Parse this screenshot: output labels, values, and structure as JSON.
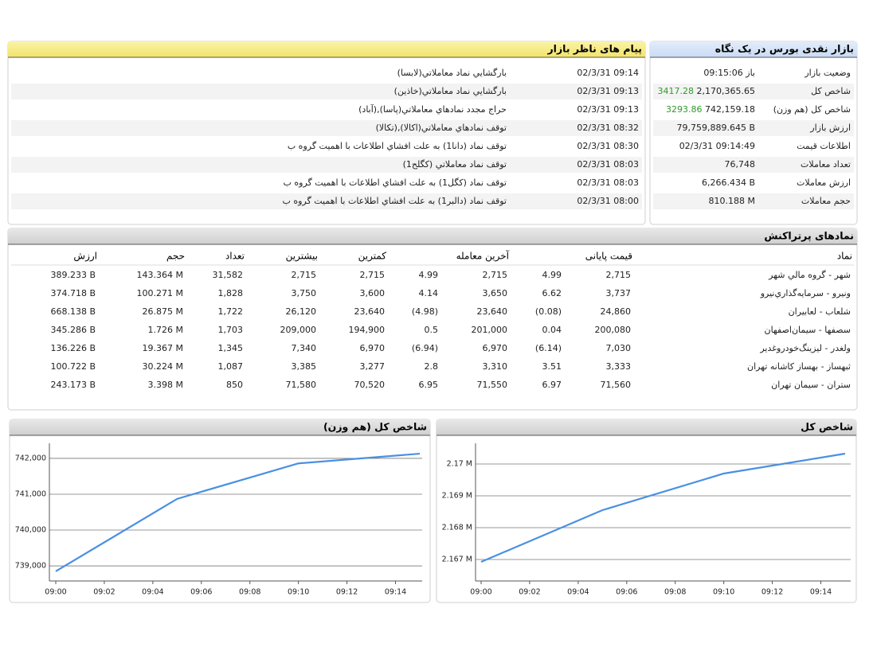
{
  "market_overview": {
    "title": "بازار نقدی بورس در یک نگاه",
    "rows": [
      {
        "label": "وضعیت بازار",
        "value": "باز 09:15:06"
      },
      {
        "label": "شاخص کل",
        "value": "2,170,365.65",
        "change": "3417.28"
      },
      {
        "label": "شاخص کل (هم وزن)",
        "value": "742,159.18",
        "change": "3293.86"
      },
      {
        "label": "ارزش بازار",
        "value": "79,759,889.645 B"
      },
      {
        "label": "اطلاعات قیمت",
        "value": "02/3/31 09:14:49"
      },
      {
        "label": "تعداد معاملات",
        "value": "76,748"
      },
      {
        "label": "ارزش معاملات",
        "value": "6,266.434 B"
      },
      {
        "label": "حجم معاملات",
        "value": "810.188 M"
      }
    ]
  },
  "watchdog_messages": {
    "title": "پیام های ناظر بازار",
    "rows": [
      {
        "time": "02/3/31 09:14",
        "text": "بارگشايي نماد معاملاتي(لابسا)"
      },
      {
        "time": "02/3/31 09:13",
        "text": "بارگشايي نماد معاملاتي(خاذين)"
      },
      {
        "time": "02/3/31 09:13",
        "text": "حراج مجدد نمادهاي معاملاتي(پاسا),(آباد)"
      },
      {
        "time": "02/3/31 08:32",
        "text": "توقف نمادهاي معاملاتي(اكالا),(تكالا)"
      },
      {
        "time": "02/3/31 08:30",
        "text": "توقف نماد (دانا1) به علت افشاي اطلاعات با اهميت گروه ب"
      },
      {
        "time": "02/3/31 08:03",
        "text": "توقف نماد معاملاتي (كگلح1)"
      },
      {
        "time": "02/3/31 08:03",
        "text": "توقف نماد (كگل1) به علت افشاي اطلاعات با اهميت گروه ب"
      },
      {
        "time": "02/3/31 08:00",
        "text": "توقف نماد (دالبر1) به علت افشاي اطلاعات با اهميت گروه ب"
      }
    ]
  },
  "top_symbols": {
    "title": "نمادهای پرتراکنش",
    "columns": [
      "نماد",
      "قیمت پایانی",
      "آخرین معامله",
      "کمترین",
      "بیشترین",
      "تعداد",
      "حجم",
      "ارزش"
    ],
    "rows": [
      [
        "شهر - گروه مالي شهر",
        "2,715",
        "4.99",
        "2,715",
        "4.99",
        "2,715",
        "2,715",
        "31,582",
        "143.364 M",
        "389.233 B"
      ],
      [
        "ونيرو - سرمايه‌گذاري‌نيرو",
        "3,737",
        "6.62",
        "3,650",
        "4.14",
        "3,600",
        "3,750",
        "1,828",
        "100.271 M",
        "374.718 B"
      ],
      [
        "شلعاب - لعابيران",
        "24,860",
        "(0.08)",
        "23,640",
        "(4.98)",
        "23,640",
        "26,120",
        "1,722",
        "26.875 M",
        "668.138 B"
      ],
      [
        "سصفها - سيمان‌اصفهان",
        "200,080",
        "0.04",
        "201,000",
        "0.5",
        "194,900",
        "209,000",
        "1,703",
        "1.726 M",
        "345.286 B"
      ],
      [
        "ولغدر - ليزينگ‌خودروغدير",
        "7,030",
        "(6.14)",
        "6,970",
        "(6.94)",
        "6,970",
        "7,340",
        "1,345",
        "19.367 M",
        "136.226 B"
      ],
      [
        "ثبهساز - بهساز كاشانه تهران",
        "3,333",
        "3.51",
        "3,310",
        "2.8",
        "3,277",
        "3,385",
        "1,087",
        "30.224 M",
        "100.722 B"
      ],
      [
        "ستران - سيمان تهران",
        "71,560",
        "6.97",
        "71,550",
        "6.95",
        "70,520",
        "71,580",
        "850",
        "3.398 M",
        "243.173 B"
      ]
    ]
  },
  "chart_data": [
    {
      "type": "line",
      "title": "شاخص کل (هم وزن)",
      "x": [
        "09:00",
        "09:05",
        "09:10",
        "09:15"
      ],
      "series": [
        {
          "color": "#4a90e2",
          "values": [
            738850,
            740870,
            741860,
            742130
          ]
        }
      ],
      "xlim": [
        "09:00",
        "09:15"
      ],
      "xticks": [
        "09:00",
        "09:02",
        "09:04",
        "09:06",
        "09:08",
        "09:10",
        "09:12",
        "09:14"
      ],
      "ylim": [
        738580,
        742420
      ],
      "yticks": [
        {
          "value": 739000,
          "label": "739,000"
        },
        {
          "value": 740000,
          "label": "740,000"
        },
        {
          "value": 741000,
          "label": "741,000"
        },
        {
          "value": 742000,
          "label": "742,000"
        }
      ],
      "grid": true
    },
    {
      "type": "line",
      "title": "شاخص کل",
      "x": [
        "09:00",
        "09:05",
        "09:10",
        "09:15"
      ],
      "series": [
        {
          "color": "#4a90e2",
          "values": [
            2166925,
            2168550,
            2169700,
            2170325
          ]
        }
      ],
      "xlim": [
        "09:00",
        "09:15"
      ],
      "xticks": [
        "09:00",
        "09:02",
        "09:04",
        "09:06",
        "09:08",
        "09:10",
        "09:12",
        "09:14"
      ],
      "ylim": [
        2166325,
        2170650
      ],
      "yticks": [
        {
          "value": 2167000,
          "label": "2.167 M"
        },
        {
          "value": 2168000,
          "label": "2.168 M"
        },
        {
          "value": 2169000,
          "label": "2.169 M"
        },
        {
          "value": 2170000,
          "label": "2.17 M"
        }
      ],
      "grid": true
    }
  ]
}
